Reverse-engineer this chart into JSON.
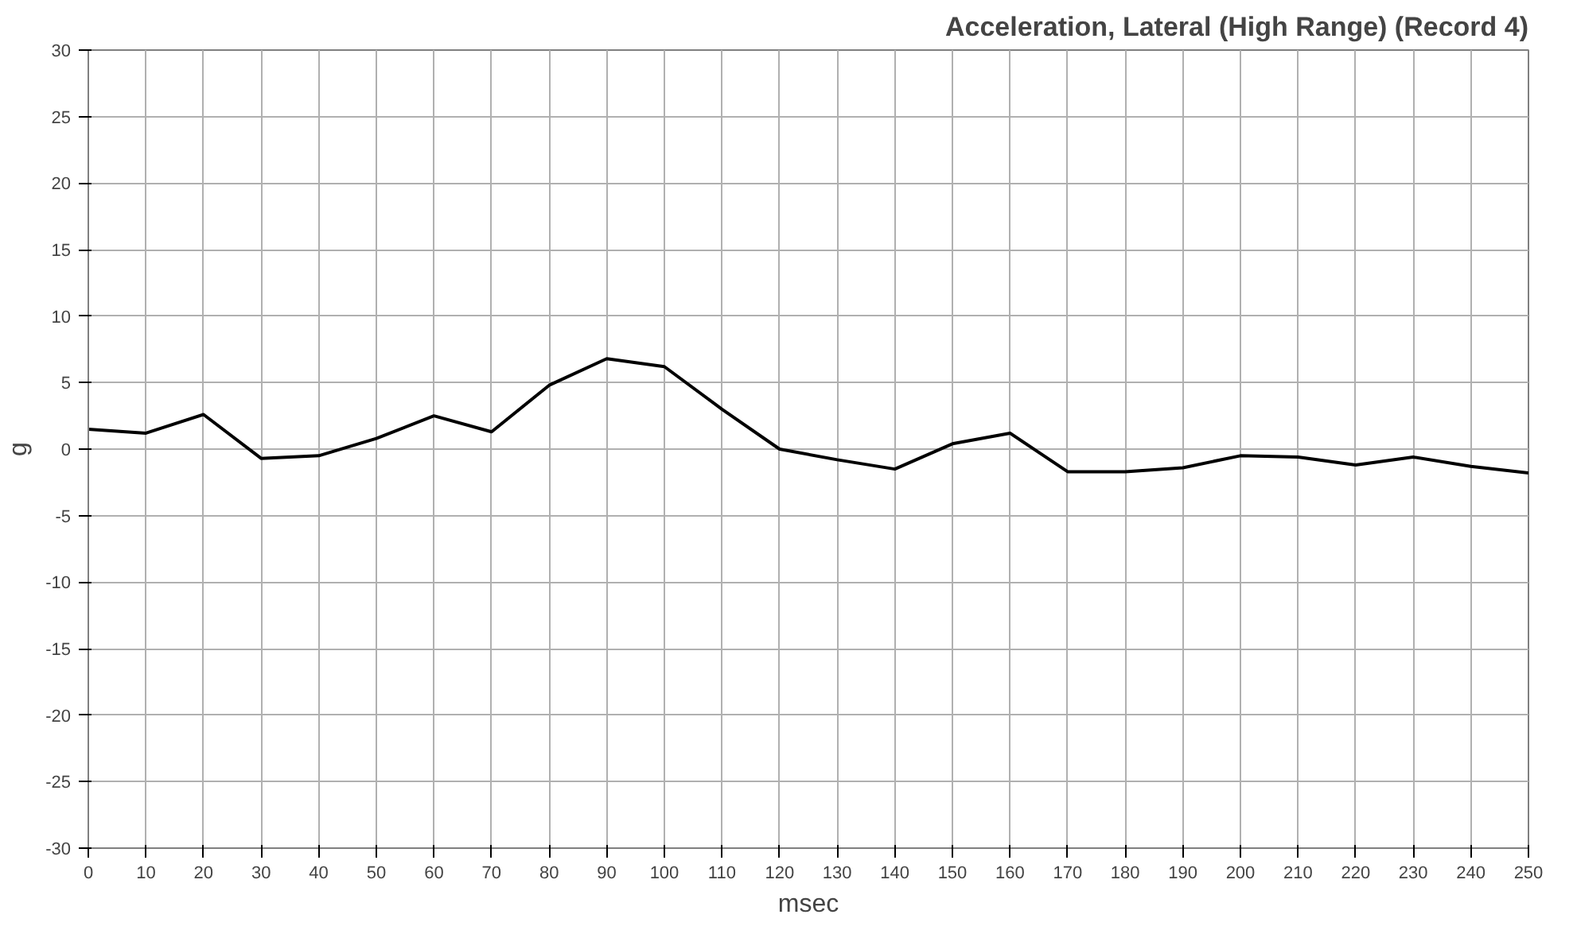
{
  "chart_data": {
    "type": "line",
    "title": "Acceleration, Lateral (High Range) (Record 4)",
    "xlabel": "msec",
    "ylabel": "g",
    "x": [
      0,
      10,
      20,
      30,
      40,
      50,
      60,
      70,
      80,
      90,
      100,
      110,
      120,
      130,
      140,
      150,
      160,
      170,
      180,
      190,
      200,
      210,
      220,
      230,
      240,
      250
    ],
    "series": [
      {
        "color": "#000000",
        "values": [
          1.5,
          1.2,
          2.6,
          -0.7,
          -0.5,
          0.8,
          2.5,
          1.3,
          4.8,
          6.8,
          6.2,
          3.0,
          0.0,
          -0.8,
          -1.5,
          0.4,
          1.2,
          -1.7,
          -1.7,
          -1.4,
          -0.5,
          -0.6,
          -1.2,
          -0.6,
          -1.3,
          -1.8
        ]
      }
    ],
    "xlim": [
      0,
      250
    ],
    "xticks": [
      0,
      10,
      20,
      30,
      40,
      50,
      60,
      70,
      80,
      90,
      100,
      110,
      120,
      130,
      140,
      150,
      160,
      170,
      180,
      190,
      200,
      210,
      220,
      230,
      240,
      250
    ],
    "ylim": [
      -30,
      30
    ],
    "yticks": [
      -30,
      -25,
      -20,
      -15,
      -10,
      -5,
      0,
      5,
      10,
      15,
      20,
      25,
      30
    ],
    "grid": true,
    "marker": "none",
    "line_style": "solid"
  }
}
